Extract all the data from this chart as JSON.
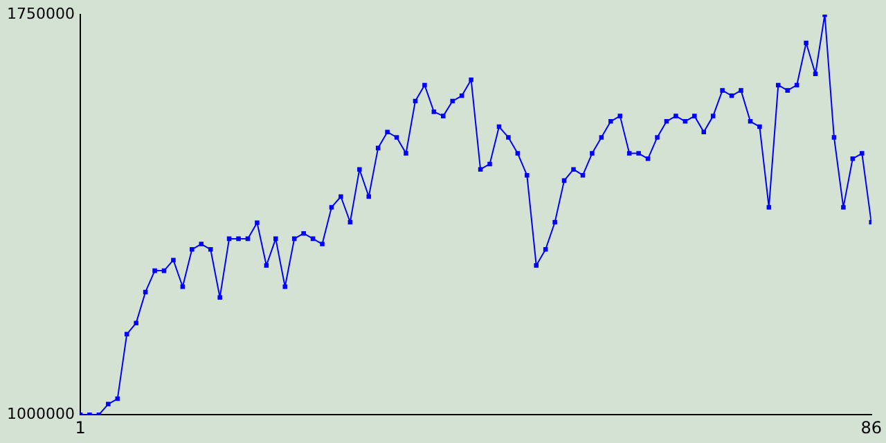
{
  "chart_data": {
    "type": "line",
    "x": [
      1,
      2,
      3,
      4,
      5,
      6,
      7,
      8,
      9,
      10,
      11,
      12,
      13,
      14,
      15,
      16,
      17,
      18,
      19,
      20,
      21,
      22,
      23,
      24,
      25,
      26,
      27,
      28,
      29,
      30,
      31,
      32,
      33,
      34,
      35,
      36,
      37,
      38,
      39,
      40,
      41,
      42,
      43,
      44,
      45,
      46,
      47,
      48,
      49,
      50,
      51,
      52,
      53,
      54,
      55,
      56,
      57,
      58,
      59,
      60,
      61,
      62,
      63,
      64,
      65,
      66,
      67,
      68,
      69,
      70,
      71,
      72,
      73,
      74,
      75,
      76,
      77,
      78,
      79,
      80,
      81,
      82,
      83,
      84,
      85,
      86
    ],
    "series": [
      {
        "color": "#0000ff",
        "values": [
          1000000,
          1000000,
          1000000,
          1020000,
          1030000,
          1151000,
          1172000,
          1230000,
          1270000,
          1270000,
          1290000,
          1240000,
          1310000,
          1320000,
          1310000,
          1220000,
          1330000,
          1330000,
          1330000,
          1360000,
          1280000,
          1330000,
          1240000,
          1330000,
          1340000,
          1330000,
          1320000,
          1389000,
          1409000,
          1361000,
          1460000,
          1409000,
          1500000,
          1530000,
          1520000,
          1490000,
          1588000,
          1618000,
          1568000,
          1560000,
          1588000,
          1598000,
          1628000,
          1460000,
          1470000,
          1540000,
          1520000,
          1490000,
          1449000,
          1280000,
          1310000,
          1361000,
          1439000,
          1460000,
          1449000,
          1490000,
          1520000,
          1550000,
          1560000,
          1490000,
          1490000,
          1480000,
          1520000,
          1550000,
          1560000,
          1550000,
          1560000,
          1530000,
          1560000,
          1608000,
          1598000,
          1608000,
          1550000,
          1540000,
          1389000,
          1618000,
          1608000,
          1618000,
          1697000,
          1639000,
          1750000,
          1520000,
          1389000,
          1480000,
          1490000,
          1361000
        ]
      }
    ],
    "xlim": [
      1,
      86
    ],
    "xticks": [
      1,
      86
    ],
    "ylim": [
      1000000,
      1750000
    ],
    "yticks": [
      1000000,
      1750000
    ],
    "grid": false,
    "legend": false,
    "marker": "square",
    "line_style": "solid"
  }
}
